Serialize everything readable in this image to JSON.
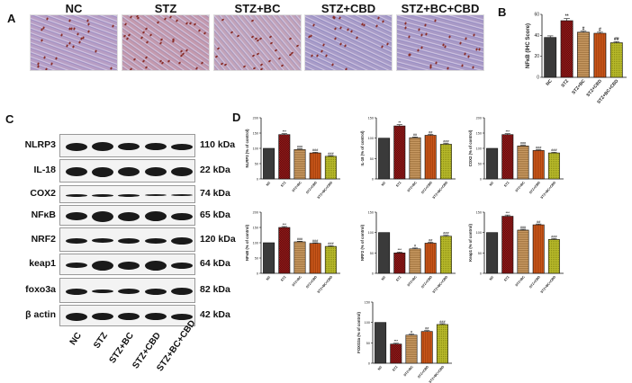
{
  "panels": {
    "A": {
      "letter": "A",
      "groups": [
        "NC",
        "STZ",
        "STZ+BC",
        "STZ+CBD",
        "STZ+BC+CBD"
      ]
    },
    "B": {
      "letter": "B"
    },
    "C": {
      "letter": "C",
      "proteins": [
        {
          "name": "NLRP3",
          "kda": "110 kDa"
        },
        {
          "name": "IL-18",
          "kda": "22 kDa"
        },
        {
          "name": "COX2",
          "kda": "74 kDa"
        },
        {
          "name": "NFκB",
          "kda": "65 kDa"
        },
        {
          "name": "NRF2",
          "kda": "120 kDa"
        },
        {
          "name": "keap1",
          "kda": "64 kDa"
        },
        {
          "name": "foxo3a",
          "kda": "82 kDa"
        },
        {
          "name": "β actin",
          "kda": "42 kDa"
        }
      ],
      "lanes": [
        "NC",
        "STZ",
        "STZ+BC",
        "STZ+CBD",
        "STZ+BC+CBD"
      ]
    },
    "D": {
      "letter": "D"
    }
  },
  "colors": {
    "NC": "#3a3a3a",
    "STZ": "#9b1b1b",
    "STZ+BC": "#c99a63",
    "STZ+CBD": "#c9561a",
    "STZ+BC+CBD": "#b6b82a"
  },
  "chart_data": [
    {
      "id": "B-NFkB-IHC",
      "type": "bar",
      "title": "",
      "categories": [
        "NC",
        "STZ",
        "STZ+BC",
        "STZ+CBD",
        "STZ+BC+CBD"
      ],
      "values": [
        38,
        54,
        43,
        42,
        33
      ],
      "errors": [
        1.5,
        2,
        1,
        1,
        1
      ],
      "significance": [
        "",
        "**",
        "#",
        "#",
        "##"
      ],
      "xlabel": "",
      "ylabel": "NFκB (IHC Score)",
      "ylim": [
        0,
        60
      ],
      "yticks": [
        0,
        20,
        40,
        60
      ]
    },
    {
      "id": "D-NLRP3",
      "type": "bar",
      "categories": [
        "NC",
        "STZ",
        "STZ+BC",
        "STZ+CBD",
        "STZ+BC+CBD"
      ],
      "values": [
        100,
        145,
        96,
        85,
        74
      ],
      "errors": [
        0,
        3,
        2,
        2,
        2
      ],
      "significance": [
        "",
        "***",
        "###",
        "###",
        "###"
      ],
      "ylabel": "NLRP3 (% of control)",
      "ylim": [
        0,
        200
      ],
      "yticks": [
        0,
        50,
        100,
        150,
        200
      ]
    },
    {
      "id": "D-IL18",
      "type": "bar",
      "categories": [
        "NC",
        "STZ",
        "STZ+BC",
        "STZ+CBD",
        "STZ+BC+CBD"
      ],
      "values": [
        100,
        130,
        101,
        107,
        85
      ],
      "errors": [
        0,
        3,
        2,
        2,
        2
      ],
      "significance": [
        "",
        "**",
        "##",
        "##",
        "###"
      ],
      "ylabel": "IL-18 (% of control)",
      "ylim": [
        0,
        150
      ],
      "yticks": [
        0,
        50,
        100,
        150
      ]
    },
    {
      "id": "D-COX2",
      "type": "bar",
      "categories": [
        "NC",
        "STZ",
        "STZ+BC",
        "STZ+CBD",
        "STZ+BC+CBD"
      ],
      "values": [
        100,
        145,
        108,
        93,
        85
      ],
      "errors": [
        0,
        3,
        2,
        2,
        2
      ],
      "significance": [
        "",
        "***",
        "###",
        "###",
        "###"
      ],
      "ylabel": "COX2 (% of control)",
      "ylim": [
        0,
        200
      ],
      "yticks": [
        0,
        50,
        100,
        150,
        200
      ]
    },
    {
      "id": "D-NFkB",
      "type": "bar",
      "categories": [
        "NC",
        "STZ",
        "STZ+BC",
        "STZ+CBD",
        "STZ+BC+CBD"
      ],
      "values": [
        100,
        150,
        103,
        98,
        88
      ],
      "errors": [
        0,
        3,
        2,
        2,
        2
      ],
      "significance": [
        "",
        "***",
        "###",
        "###",
        "###"
      ],
      "ylabel": "NFκB (% of control)",
      "ylim": [
        0,
        200
      ],
      "yticks": [
        0,
        50,
        100,
        150,
        200
      ]
    },
    {
      "id": "D-NRF2",
      "type": "bar",
      "categories": [
        "NC",
        "STZ",
        "STZ+BC",
        "STZ+CBD",
        "STZ+BC+CBD"
      ],
      "values": [
        100,
        50,
        60,
        74,
        91
      ],
      "errors": [
        0,
        2,
        2,
        2,
        2
      ],
      "significance": [
        "",
        "***",
        "#",
        "##",
        "###"
      ],
      "ylabel": "NRF2 (% of control)",
      "ylim": [
        0,
        150
      ],
      "yticks": [
        0,
        50,
        100,
        150
      ]
    },
    {
      "id": "D-Keap1",
      "type": "bar",
      "categories": [
        "NC",
        "STZ",
        "STZ+BC",
        "STZ+CBD",
        "STZ+BC+CBD"
      ],
      "values": [
        100,
        140,
        106,
        119,
        83
      ],
      "errors": [
        0,
        3,
        2,
        2,
        2
      ],
      "significance": [
        "",
        "***",
        "###",
        "##",
        "###"
      ],
      "ylabel": "Keap1 (% of control)",
      "ylim": [
        0,
        150
      ],
      "yticks": [
        0,
        50,
        100,
        150
      ]
    },
    {
      "id": "D-FOXO3a",
      "type": "bar",
      "categories": [
        "NC",
        "STZ",
        "STZ+BC",
        "STZ+CBD",
        "STZ+BC+CBD"
      ],
      "values": [
        100,
        47,
        69,
        78,
        95
      ],
      "errors": [
        0,
        2,
        2,
        2,
        2
      ],
      "significance": [
        "",
        "***",
        "#",
        "##",
        "###"
      ],
      "ylabel": "FOXO3a (% of control)",
      "ylim": [
        0,
        150
      ],
      "yticks": [
        0,
        50,
        100,
        150
      ]
    }
  ]
}
